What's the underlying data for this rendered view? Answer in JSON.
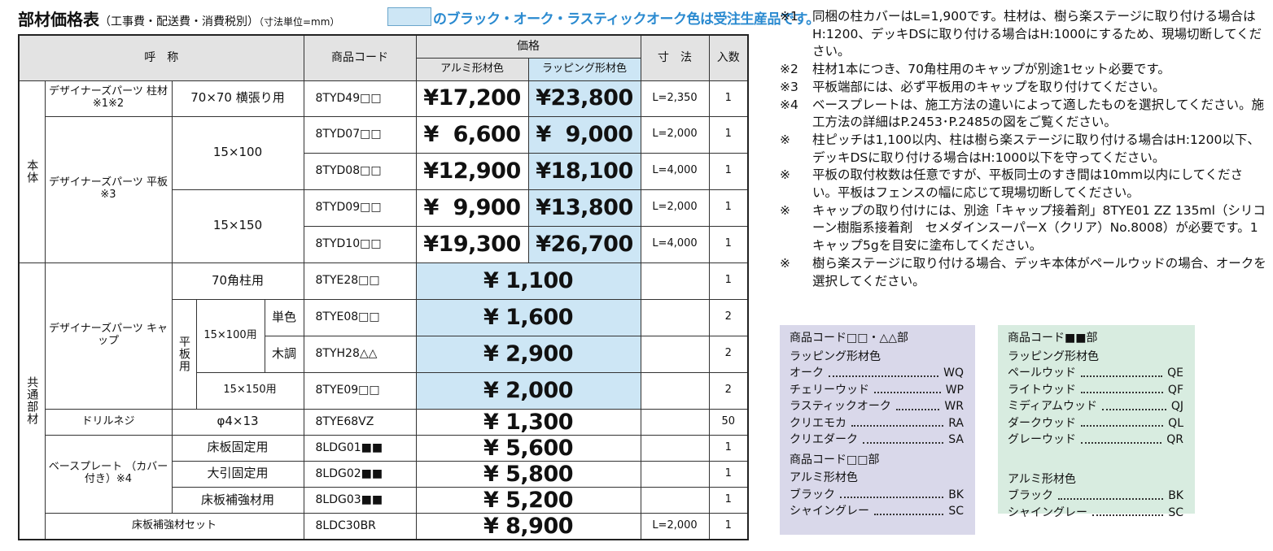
{
  "title": {
    "main": "部材価格表",
    "sub": "（工事費・配送費・消費税別）",
    "unit": "（寸法単位=mm）"
  },
  "legend_text": "のブラック・オーク・ラスティックオーク色は受注生産品です。",
  "colors": {
    "blue_cell": "#cde6f5",
    "legend_text": "#2a8ad0",
    "header_bg": "#e3e3e3",
    "box1_bg": "#d9d8ea",
    "box2_bg": "#d8ece0"
  },
  "table": {
    "headers": {
      "name": "呼　称",
      "code": "商品コード",
      "price": "価格",
      "alu": "アルミ形材色",
      "wrap": "ラッピング形材色",
      "size": "寸　法",
      "qty": "入数"
    },
    "groups": {
      "honntai": "本体",
      "kyoutsuu": "共通部材",
      "hiraita_you": "平板用"
    },
    "rows": [
      {
        "name": "デザイナーズパーツ\n柱材 ※1※2",
        "spec": "70×70\n横張り用",
        "code": "8TYD49□□",
        "alu": "¥17,200",
        "wrap": "¥23,800",
        "size": "L=2,350",
        "qty": "1"
      },
      {
        "name": "デザイナーズパーツ\n平板 ※3",
        "spec": "15×100",
        "code": "8TYD07□□",
        "alu": "¥  6,600",
        "wrap": "¥  9,000",
        "size": "L=2,000",
        "qty": "1"
      },
      {
        "code": "8TYD08□□",
        "alu": "¥12,900",
        "wrap": "¥18,100",
        "size": "L=4,000",
        "qty": "1"
      },
      {
        "spec": "15×150",
        "code": "8TYD09□□",
        "alu": "¥  9,900",
        "wrap": "¥13,800",
        "size": "L=2,000",
        "qty": "1"
      },
      {
        "code": "8TYD10□□",
        "alu": "¥19,300",
        "wrap": "¥26,700",
        "size": "L=4,000",
        "qty": "1"
      },
      {
        "name": "デザイナーズパーツ\nキャップ",
        "spec": "70角柱用",
        "code": "8TYE28□□",
        "price": "¥ 1,100",
        "size": "",
        "qty": "1"
      },
      {
        "spec": "15×100用",
        "sub": "単色",
        "code": "8TYE08□□",
        "price": "¥ 1,600",
        "qty": "2"
      },
      {
        "sub": "木調",
        "code": "8TYH28△△",
        "price": "¥ 2,900",
        "qty": "2"
      },
      {
        "spec": "15×150用",
        "code": "8TYE09□□",
        "price": "¥ 2,000",
        "qty": "2"
      },
      {
        "name": "ドリルネジ",
        "spec": "φ4×13",
        "code": "8TYE68VZ",
        "price": "¥ 1,300",
        "qty": "50"
      },
      {
        "name": "ベースプレート\n（カバー付き）※4",
        "spec": "床板固定用",
        "code": "8LDG01■■",
        "price": "¥ 5,600",
        "qty": "1"
      },
      {
        "spec": "大引固定用",
        "code": "8LDG02■■",
        "price": "¥ 5,800",
        "qty": "1"
      },
      {
        "spec": "床板補強材用",
        "code": "8LDG03■■",
        "price": "¥ 5,200",
        "qty": "1"
      },
      {
        "name": "床板補強材セット",
        "code": "8LDC30BR",
        "price": "¥ 8,900",
        "size": "L=2,000",
        "qty": "1"
      }
    ]
  },
  "notes": [
    {
      "mark": "※1",
      "text": "同梱の柱カバーはL=1,900です。柱材は、樹ら楽ステージに取り付ける場合はH:1200、デッキDSに取り付ける場合はH:1000にするため、現場切断してください。"
    },
    {
      "mark": "※2",
      "text": "柱材1本につき、70角柱用のキャップが別途1セット必要です。"
    },
    {
      "mark": "※3",
      "text": "平板端部には、必ず平板用のキャップを取り付けてください。"
    },
    {
      "mark": "※4",
      "text": "ベースプレートは、施工方法の違いによって適したものを選択してください。施工方法の詳細はP.2453･P.2485の図をご覧ください。"
    },
    {
      "mark": "※",
      "text": "柱ピッチは1,100以内、柱は樹ら楽ステージに取り付ける場合はH:1200以下、デッキDSに取り付ける場合はH:1000以下を守ってください。"
    },
    {
      "mark": "※",
      "text": "平板の取付枚数は任意ですが、平板同士のすき間は10mm以内にしてください。平板はフェンスの幅に応じて現場切断してください。"
    },
    {
      "mark": "※",
      "text": "キャップの取り付けには、別途「キャップ接着剤」8TYE01 ZZ 135ml（シリコーン樹脂系接着剤　セメダインスーパーX（クリア）No.8008）が必要です。1キャップ5gを目安に塗布してください。"
    },
    {
      "mark": "※",
      "text": "樹ら楽ステージに取り付ける場合、デッキ本体がペールウッドの場合、オークを選択してください。"
    }
  ],
  "code_box_1": {
    "sections": [
      {
        "heading": "商品コード□□・△△部",
        "sub": "ラッピング形材色",
        "items": [
          {
            "name": "オーク",
            "code": "WQ"
          },
          {
            "name": "チェリーウッド",
            "code": "WP"
          },
          {
            "name": "ラスティックオーク",
            "code": "WR"
          },
          {
            "name": "クリエモカ",
            "code": "RA"
          },
          {
            "name": "クリエダーク",
            "code": "SA"
          }
        ]
      },
      {
        "heading": "商品コード□□部",
        "sub": "アルミ形材色",
        "items": [
          {
            "name": "ブラック",
            "code": "BK"
          },
          {
            "name": "シャイングレー",
            "code": "SC"
          }
        ]
      }
    ]
  },
  "code_box_2": {
    "sections": [
      {
        "heading": "商品コード■■部",
        "sub": "ラッピング形材色",
        "items": [
          {
            "name": "ペールウッド",
            "code": "QE"
          },
          {
            "name": "ライトウッド",
            "code": "QF"
          },
          {
            "name": "ミディアムウッド",
            "code": "QJ"
          },
          {
            "name": "ダークウッド",
            "code": "QL"
          },
          {
            "name": "グレーウッド",
            "code": "QR"
          }
        ]
      },
      {
        "heading": "",
        "sub": "アルミ形材色",
        "items": [
          {
            "name": "ブラック",
            "code": "BK"
          },
          {
            "name": "シャイングレー",
            "code": "SC"
          }
        ]
      }
    ]
  }
}
